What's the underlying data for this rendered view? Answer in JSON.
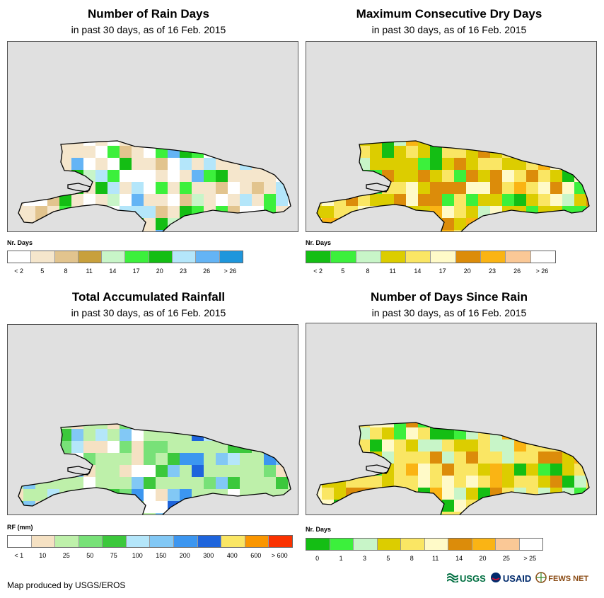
{
  "panels": [
    {
      "title": "Number of Rain Days",
      "subtitle": "in past 30 days, as of 16 Feb. 2015",
      "legend_title": "Nr. Days",
      "legend_colors": [
        "#ffffff",
        "#f5e6cc",
        "#e2c48e",
        "#c8a03c",
        "#c8f5c8",
        "#3cf03c",
        "#14be14",
        "#b4e6fa",
        "#64b4f5",
        "#1e96dc"
      ],
      "legend_labels": [
        "< 2",
        "5",
        "8",
        "11",
        "14",
        "17",
        "20",
        "23",
        "26",
        "> 26"
      ]
    },
    {
      "title": "Maximum Consecutive Dry Days",
      "subtitle": "in past 30 days, as of 16 Feb. 2015",
      "legend_title": "Nr. Days",
      "legend_colors": [
        "#14be14",
        "#3cf03c",
        "#c8f5c8",
        "#dccd00",
        "#fae664",
        "#fffac8",
        "#dc8c0a",
        "#fab414",
        "#fac896",
        "#ffffff"
      ],
      "legend_labels": [
        "< 2",
        "5",
        "8",
        "11",
        "14",
        "17",
        "20",
        "23",
        "26",
        "> 26"
      ]
    },
    {
      "title": "Total Accumulated Rainfall",
      "subtitle": "in past 30 days, as of 16 Feb. 2015",
      "legend_title": "RF (mm)",
      "legend_colors": [
        "#ffffff",
        "#f5e1c3",
        "#bef0aa",
        "#78e178",
        "#3cc83c",
        "#b4e6fa",
        "#82c8f5",
        "#3c96f0",
        "#1e64dc",
        "#fae664",
        "#fa9600",
        "#fa3200"
      ],
      "legend_labels": [
        "< 1",
        "10",
        "25",
        "50",
        "75",
        "100",
        "150",
        "200",
        "300",
        "400",
        "600",
        "> 600"
      ]
    },
    {
      "title": "Number of Days Since Rain",
      "subtitle": "in past 30 days, as of 16 Feb. 2015",
      "legend_title": "Nr. Days",
      "legend_colors": [
        "#14be14",
        "#3cf03c",
        "#c8f5c8",
        "#dccd00",
        "#fae664",
        "#fffac8",
        "#dc8c0a",
        "#fab414",
        "#fac896",
        "#ffffff"
      ],
      "legend_labels": [
        "0",
        "1",
        "3",
        "5",
        "8",
        "11",
        "14",
        "20",
        "25",
        "> 25"
      ]
    }
  ],
  "footer": "Map produced by USGS/EROS",
  "logos": [
    "USGS",
    "USAID",
    "FEWS NET"
  ],
  "colors": {
    "sea": "#e0e0e0",
    "coast": "#000000"
  }
}
